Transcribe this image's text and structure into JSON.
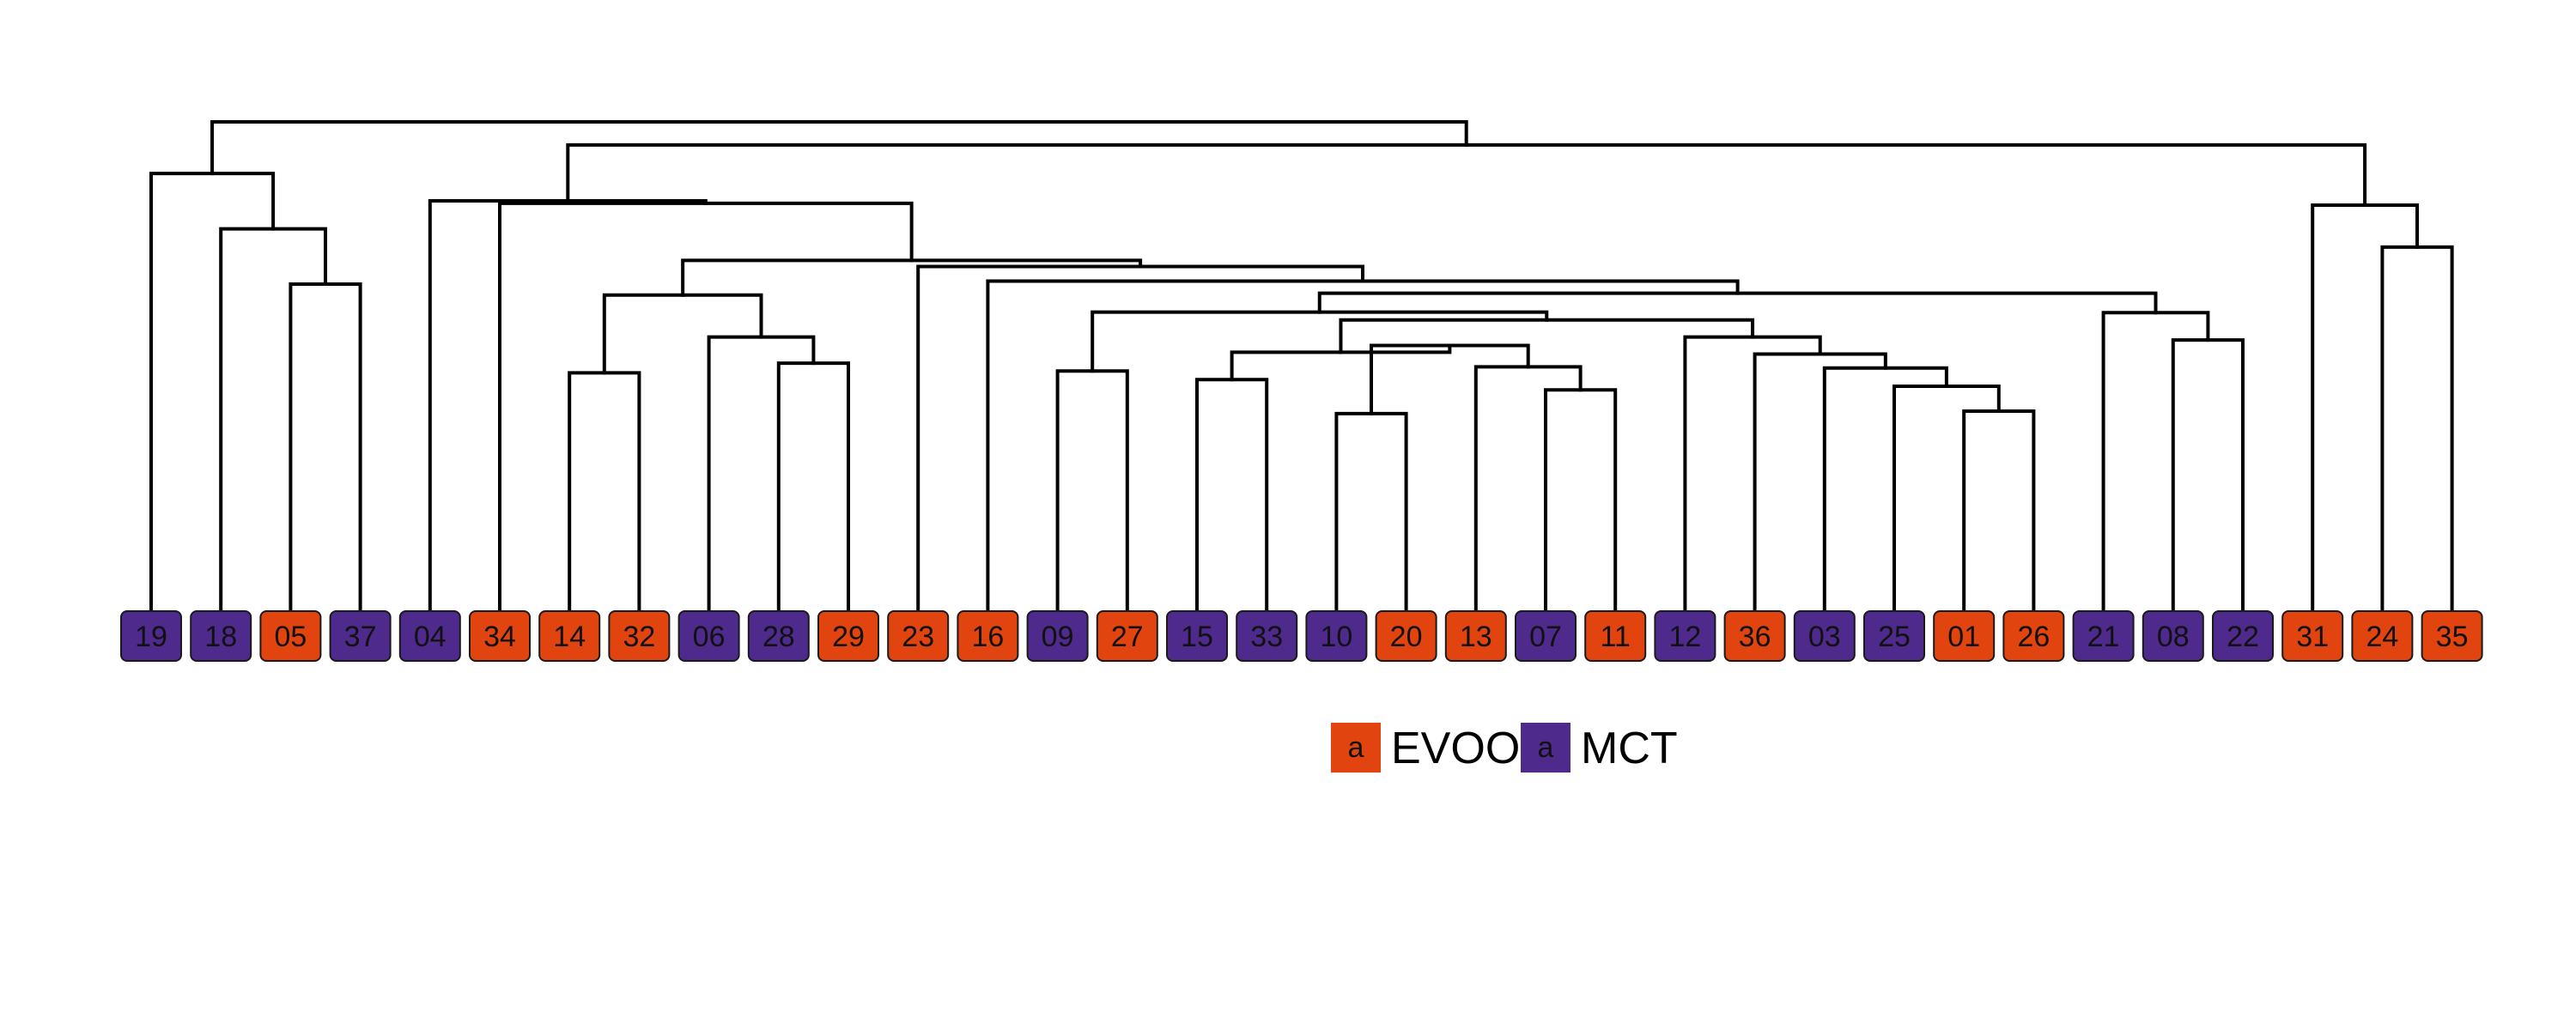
{
  "colors": {
    "EVOO": "#E1440E",
    "MCT": "#4E2A8C",
    "branch": "#000000"
  },
  "legend": {
    "items": [
      {
        "key": "EVOO",
        "swatch_text": "a",
        "label": "EVOO"
      },
      {
        "key": "MCT",
        "swatch_text": "a",
        "label": "MCT"
      }
    ]
  },
  "chart_data": {
    "type": "dendrogram",
    "leaves": [
      {
        "id": "19",
        "group": "MCT"
      },
      {
        "id": "18",
        "group": "MCT"
      },
      {
        "id": "05",
        "group": "EVOO"
      },
      {
        "id": "37",
        "group": "MCT"
      },
      {
        "id": "04",
        "group": "MCT"
      },
      {
        "id": "34",
        "group": "EVOO"
      },
      {
        "id": "14",
        "group": "EVOO"
      },
      {
        "id": "32",
        "group": "EVOO"
      },
      {
        "id": "06",
        "group": "MCT"
      },
      {
        "id": "28",
        "group": "MCT"
      },
      {
        "id": "29",
        "group": "EVOO"
      },
      {
        "id": "23",
        "group": "EVOO"
      },
      {
        "id": "16",
        "group": "EVOO"
      },
      {
        "id": "09",
        "group": "MCT"
      },
      {
        "id": "27",
        "group": "EVOO"
      },
      {
        "id": "15",
        "group": "MCT"
      },
      {
        "id": "33",
        "group": "MCT"
      },
      {
        "id": "10",
        "group": "MCT"
      },
      {
        "id": "20",
        "group": "EVOO"
      },
      {
        "id": "13",
        "group": "EVOO"
      },
      {
        "id": "07",
        "group": "MCT"
      },
      {
        "id": "11",
        "group": "EVOO"
      },
      {
        "id": "12",
        "group": "MCT"
      },
      {
        "id": "36",
        "group": "EVOO"
      },
      {
        "id": "03",
        "group": "MCT"
      },
      {
        "id": "25",
        "group": "MCT"
      },
      {
        "id": "01",
        "group": "EVOO"
      },
      {
        "id": "26",
        "group": "EVOO"
      },
      {
        "id": "21",
        "group": "MCT"
      },
      {
        "id": "08",
        "group": "MCT"
      },
      {
        "id": "22",
        "group": "MCT"
      },
      {
        "id": "31",
        "group": "EVOO"
      },
      {
        "id": "24",
        "group": "EVOO"
      },
      {
        "id": "35",
        "group": "EVOO"
      }
    ],
    "merges": [
      {
        "id": "c-05-37",
        "children": [
          "05",
          "37"
        ],
        "height": 0.733
      },
      {
        "id": "c-18-0537",
        "children": [
          "18",
          "c-05-37"
        ],
        "height": 0.824
      },
      {
        "id": "c-19-18",
        "children": [
          "19",
          "c-18-0537"
        ],
        "height": 0.915
      },
      {
        "id": "c-14-32",
        "children": [
          "14",
          "c-32"
        ],
        "height": 0.587
      },
      {
        "id": "c-28-29",
        "children": [
          "28",
          "29"
        ],
        "height": 0.603
      },
      {
        "id": "c-06-2829",
        "children": [
          "06",
          "c-28-29"
        ],
        "height": 0.646
      },
      {
        "id": "c-1432-062829",
        "children": [
          "c-14-32",
          "c-06-2829"
        ],
        "height": 0.715
      },
      {
        "id": "c-09-27",
        "children": [
          "09",
          "27"
        ],
        "height": 0.59
      },
      {
        "id": "c-15-33",
        "children": [
          "15",
          "33"
        ],
        "height": 0.576
      },
      {
        "id": "c-10-20",
        "children": [
          "10",
          "20"
        ],
        "height": 0.52
      },
      {
        "id": "c-07-11",
        "children": [
          "07",
          "11"
        ],
        "height": 0.559
      },
      {
        "id": "c-13-0711",
        "children": [
          "13",
          "c-07-11"
        ],
        "height": 0.597
      },
      {
        "id": "c-1020-130711",
        "children": [
          "c-10-20",
          "c-13-0711"
        ],
        "height": 0.632
      },
      {
        "id": "c-1533-rest",
        "children": [
          "c-15-33",
          "c-1020-130711"
        ],
        "height": 0.621
      },
      {
        "id": "c-01-26",
        "children": [
          "01",
          "26"
        ],
        "height": 0.524
      },
      {
        "id": "c-25-0126",
        "children": [
          "25",
          "c-01-26"
        ],
        "height": 0.565
      },
      {
        "id": "c-03-25",
        "children": [
          "03",
          "c-25-0126"
        ],
        "height": 0.595
      },
      {
        "id": "c-36-03",
        "children": [
          "36",
          "c-03-25"
        ],
        "height": 0.618
      },
      {
        "id": "c-12-36",
        "children": [
          "12",
          "c-36-03"
        ],
        "height": 0.646
      },
      {
        "id": "c-block-1533-12",
        "children": [
          "c-1533-rest",
          "c-12-36"
        ],
        "height": 0.674
      },
      {
        "id": "c-0927-block",
        "children": [
          "c-09-27",
          "c-block-1533-12"
        ],
        "height": 0.687
      },
      {
        "id": "c-08-22",
        "children": [
          "08",
          "22"
        ],
        "height": 0.641
      },
      {
        "id": "c-21-0822",
        "children": [
          "21",
          "c-08-22"
        ],
        "height": 0.686
      },
      {
        "id": "c-mid-21",
        "children": [
          "c-0927-block",
          "c-21-0822"
        ],
        "height": 0.718
      },
      {
        "id": "c-16-mid",
        "children": [
          "16",
          "c-mid-21"
        ],
        "height": 0.738
      },
      {
        "id": "c-23-16",
        "children": [
          "23",
          "c-16-mid"
        ],
        "height": 0.762
      },
      {
        "id": "c-1432-23",
        "children": [
          "c-1432-062829",
          "c-23-16"
        ],
        "height": 0.772
      },
      {
        "id": "c-34-1432",
        "children": [
          "34",
          "c-1432-23"
        ],
        "height": 0.866
      },
      {
        "id": "c-04-34",
        "children": [
          "04",
          "c-34-1432"
        ],
        "height": 0.87
      },
      {
        "id": "c-24-35",
        "children": [
          "24",
          "35"
        ],
        "height": 0.794
      },
      {
        "id": "c-31-2435",
        "children": [
          "31",
          "c-24-35"
        ],
        "height": 0.863
      },
      {
        "id": "c-04-31",
        "children": [
          "c-04-34",
          "c-31-2435"
        ],
        "height": 0.962
      },
      {
        "id": "c-root",
        "children": [
          "c-19-18",
          "c-04-31"
        ],
        "height": 1.0
      }
    ]
  }
}
